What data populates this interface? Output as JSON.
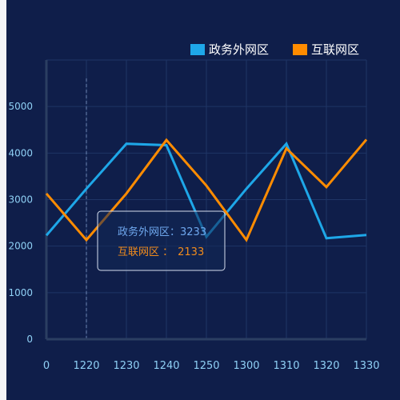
{
  "chart_data": {
    "type": "line",
    "title": "",
    "xlabel": "",
    "ylabel": "",
    "x": [
      "0",
      "1220",
      "1230",
      "1240",
      "1250",
      "1300",
      "1310",
      "1320",
      "1330"
    ],
    "yticks": [
      "0",
      "1000",
      "2000",
      "3000",
      "4000",
      "5000"
    ],
    "ylim": [
      0,
      6000
    ],
    "grid": true,
    "legend_position": "top-right",
    "series": [
      {
        "name": "政务外网区",
        "color": "#1ea7e8",
        "values": [
          2230,
          3233,
          4200,
          4170,
          2200,
          3233,
          4200,
          2170,
          2240
        ]
      },
      {
        "name": "互联网区",
        "color": "#ff8c00",
        "values": [
          3130,
          2133,
          3130,
          4280,
          3300,
          2133,
          4100,
          3270,
          4290
        ]
      }
    ],
    "tooltip": {
      "index": 1,
      "rows": [
        {
          "label": "政务外网区：",
          "value": "3233",
          "color": "#6fa8ee"
        },
        {
          "label": "互联网区 ：",
          "value": "2133",
          "color": "#f28c1c"
        }
      ]
    }
  }
}
